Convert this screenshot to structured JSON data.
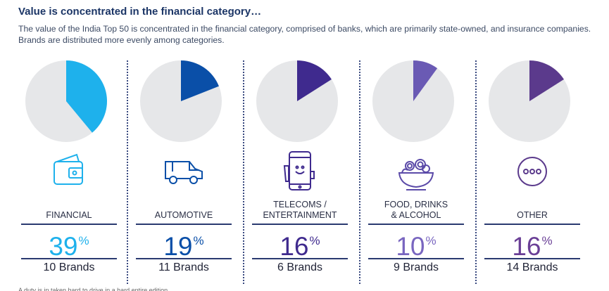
{
  "header": {
    "title": "Value is concentrated in the financial category…",
    "subtitle": "The value of the India Top 50 is concentrated in the financial category, comprised of banks, which are primarily state-owned, and insurance companies. Brands are distributed more evenly among categories."
  },
  "chart_data": {
    "type": "pie",
    "title": "Value is concentrated in the financial category…",
    "background_color": "#e6e7e9",
    "series": [
      {
        "category": "FINANCIAL",
        "value": 39,
        "label": "39",
        "unit": "%",
        "brands": "10 Brands",
        "color": "#1eb1ec",
        "text_color": "#1eb1ec",
        "icon": "wallet-icon"
      },
      {
        "category": "AUTOMOTIVE",
        "value": 19,
        "label": "19",
        "unit": "%",
        "brands": "11 Brands",
        "color": "#0a4fa8",
        "text_color": "#0a4fa8",
        "icon": "van-icon"
      },
      {
        "category": "TELECOMS / ENTERTAINMENT",
        "value": 16,
        "label": "16",
        "unit": "%",
        "brands": "6 Brands",
        "color": "#3f2a8e",
        "text_color": "#3f2a8e",
        "icon": "phone-icon"
      },
      {
        "category": "FOOD, DRINKS & ALCOHOL",
        "value": 10,
        "label": "10",
        "unit": "%",
        "brands": "9 Brands",
        "color": "#6a5ab4",
        "text_color": "#7966c0",
        "icon": "noodle-bowl-icon"
      },
      {
        "category": "OTHER",
        "value": 16,
        "label": "16",
        "unit": "%",
        "brands": "14 Brands",
        "color": "#5b3a8c",
        "text_color": "#6a3f96",
        "icon": "more-dots-icon"
      }
    ]
  },
  "footnote": "A duty is in taken hard to drive in a hard entire edition"
}
